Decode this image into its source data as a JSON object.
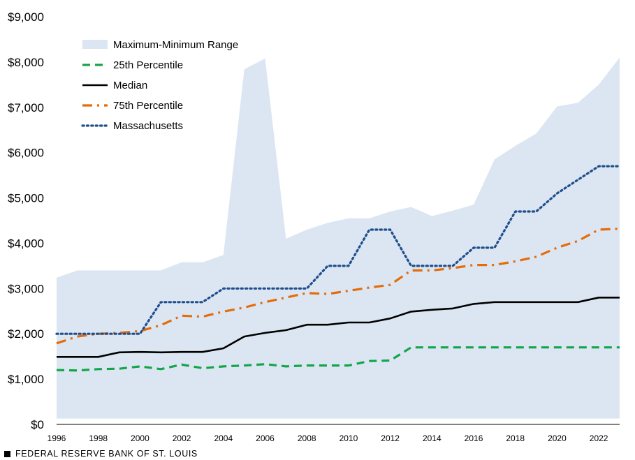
{
  "chart_data": {
    "type": "area",
    "title": "",
    "xlabel": "",
    "ylabel": "",
    "x": [
      1996,
      1997,
      1998,
      1999,
      2000,
      2001,
      2002,
      2003,
      2004,
      2005,
      2006,
      2007,
      2008,
      2009,
      2010,
      2011,
      2012,
      2013,
      2014,
      2015,
      2016,
      2017,
      2018,
      2019,
      2020,
      2021,
      2022,
      2023
    ],
    "xticks": [
      "1996",
      "1998",
      "2000",
      "2002",
      "2004",
      "2006",
      "2008",
      "2010",
      "2012",
      "2014",
      "2016",
      "2018",
      "2020",
      "2022"
    ],
    "xtick_values": [
      1996,
      1998,
      2000,
      2002,
      2004,
      2006,
      2008,
      2010,
      2012,
      2014,
      2016,
      2018,
      2020,
      2022
    ],
    "ylim": [
      0,
      9000
    ],
    "xlim": [
      1996,
      2023
    ],
    "yticks": [
      "$0",
      "$1,000",
      "$2,000",
      "$3,000",
      "$4,000",
      "$5,000",
      "$6,000",
      "$7,000",
      "$8,000",
      "$9,000"
    ],
    "ytick_values": [
      0,
      1000,
      2000,
      3000,
      4000,
      5000,
      6000,
      7000,
      8000,
      9000
    ],
    "legend_position": "top-left",
    "series": [
      {
        "name": "Maximum-Minimum Range",
        "style": "band",
        "color": "#dce6f2",
        "upper": [
          3240,
          3400,
          3400,
          3400,
          3400,
          3400,
          3580,
          3580,
          3740,
          7840,
          8080,
          4100,
          4300,
          4450,
          4550,
          4550,
          4700,
          4800,
          4600,
          4720,
          4850,
          5850,
          6150,
          6420,
          7020,
          7100,
          7500,
          8100
        ],
        "lower": [
          130,
          130,
          130,
          130,
          130,
          130,
          130,
          130,
          130,
          130,
          130,
          130,
          130,
          130,
          130,
          130,
          130,
          130,
          130,
          130,
          130,
          130,
          130,
          130,
          130,
          130,
          130,
          130
        ]
      },
      {
        "name": "25th Percentile",
        "style": "dashed",
        "color": "#13a54a",
        "values": [
          1200,
          1190,
          1220,
          1230,
          1280,
          1220,
          1320,
          1240,
          1280,
          1300,
          1330,
          1280,
          1300,
          1300,
          1300,
          1400,
          1410,
          1700,
          1700,
          1700,
          1700,
          1700,
          1700,
          1700,
          1700,
          1700,
          1700,
          1700
        ]
      },
      {
        "name": "Median",
        "style": "solid",
        "color": "#000000",
        "values": [
          1490,
          1490,
          1490,
          1590,
          1600,
          1590,
          1600,
          1600,
          1680,
          1940,
          2020,
          2080,
          2200,
          2200,
          2250,
          2250,
          2340,
          2490,
          2530,
          2560,
          2660,
          2700,
          2700,
          2700,
          2700,
          2700,
          2800,
          2800
        ]
      },
      {
        "name": "75th Percentile",
        "style": "dashdot",
        "color": "#e46c0a",
        "values": [
          1790,
          1940,
          2000,
          2020,
          2060,
          2190,
          2400,
          2380,
          2490,
          2580,
          2700,
          2800,
          2900,
          2880,
          2950,
          3020,
          3080,
          3400,
          3400,
          3450,
          3520,
          3520,
          3600,
          3700,
          3900,
          4050,
          4300,
          4320
        ]
      },
      {
        "name": "Massachusetts",
        "style": "dotted",
        "color": "#1f4e8c",
        "values": [
          2000,
          2000,
          2000,
          2000,
          2000,
          2700,
          2700,
          2700,
          3000,
          3000,
          3000,
          3000,
          3000,
          3500,
          3500,
          4300,
          4300,
          3500,
          3500,
          3500,
          3900,
          3900,
          4700,
          4700,
          5100,
          5400,
          5700,
          5700
        ]
      }
    ]
  },
  "footer": {
    "text": "FEDERAL RESERVE BANK OF ST. LOUIS"
  }
}
